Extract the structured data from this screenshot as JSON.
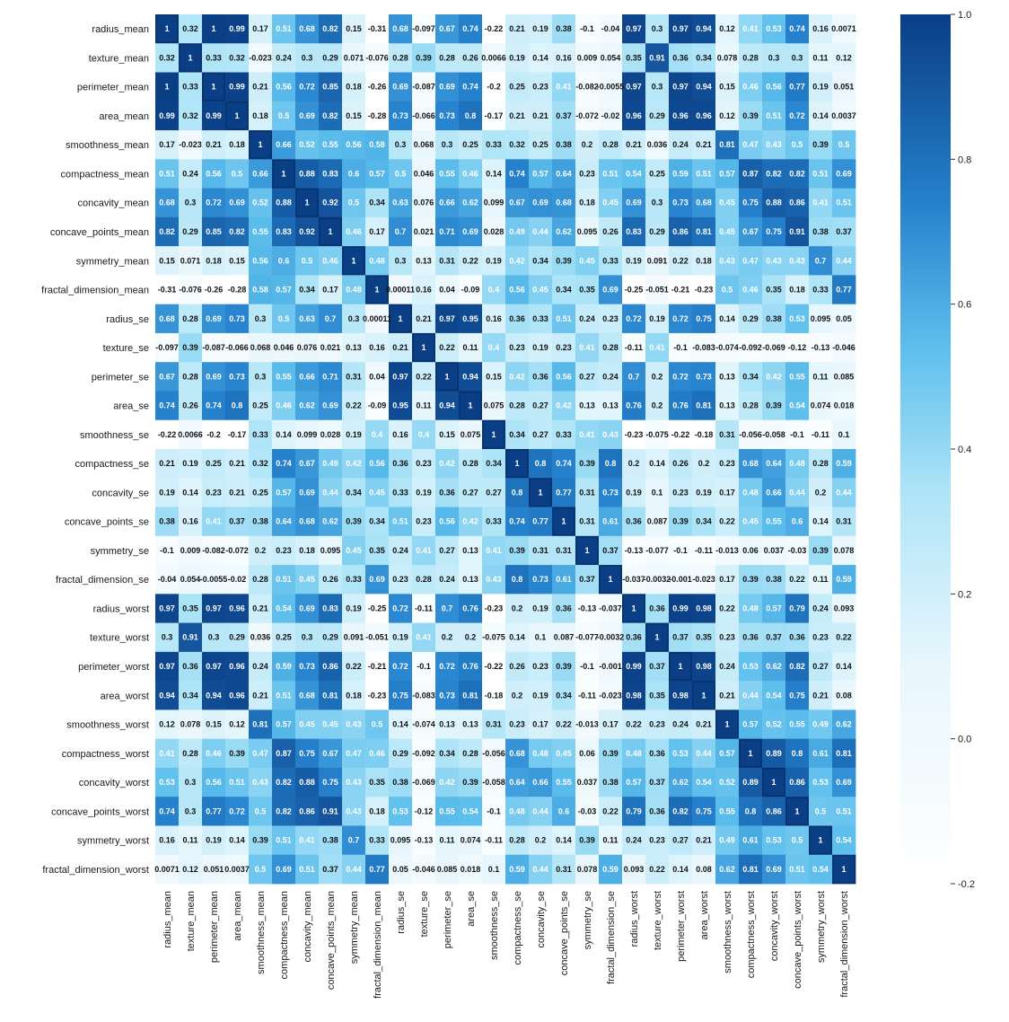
{
  "chart_data": {
    "type": "heatmap",
    "title": "",
    "variables": [
      "radius_mean",
      "texture_mean",
      "perimeter_mean",
      "area_mean",
      "smoothness_mean",
      "compactness_mean",
      "concavity_mean",
      "concave_points_mean",
      "symmetry_mean",
      "fractal_dimension_mean",
      "radius_se",
      "texture_se",
      "perimeter_se",
      "area_se",
      "smoothness_se",
      "compactness_se",
      "concavity_se",
      "concave_points_se",
      "symmetry_se",
      "fractal_dimension_se",
      "radius_worst",
      "texture_worst",
      "perimeter_worst",
      "area_worst",
      "smoothness_worst",
      "compactness_worst",
      "concavity_worst",
      "concave_points_worst",
      "symmetry_worst",
      "fractal_dimension_worst"
    ],
    "values": [
      [
        1,
        0.32,
        1,
        0.99,
        0.17,
        0.51,
        0.68,
        0.82,
        0.15,
        -0.31,
        0.68,
        -0.097,
        0.67,
        0.74,
        -0.22,
        0.21,
        0.19,
        0.38,
        -0.1,
        -0.04,
        0.97,
        0.3,
        0.97,
        0.94,
        0.12,
        0.41,
        0.53,
        0.74,
        0.16,
        0.0071
      ],
      [
        0.32,
        1,
        0.33,
        0.32,
        -0.023,
        0.24,
        0.3,
        0.29,
        0.071,
        -0.076,
        0.28,
        0.39,
        0.28,
        0.26,
        0.0066,
        0.19,
        0.14,
        0.16,
        0.009,
        0.054,
        0.35,
        0.91,
        0.36,
        0.34,
        0.078,
        0.28,
        0.3,
        0.3,
        0.11,
        0.12
      ],
      [
        1,
        0.33,
        1,
        0.99,
        0.21,
        0.56,
        0.72,
        0.85,
        0.18,
        -0.26,
        0.69,
        -0.087,
        0.69,
        0.74,
        -0.2,
        0.25,
        0.23,
        0.41,
        -0.082,
        -0.0055,
        0.97,
        0.3,
        0.97,
        0.94,
        0.15,
        0.46,
        0.56,
        0.77,
        0.19,
        0.051
      ],
      [
        0.99,
        0.32,
        0.99,
        1,
        0.18,
        0.5,
        0.69,
        0.82,
        0.15,
        -0.28,
        0.73,
        -0.066,
        0.73,
        0.8,
        -0.17,
        0.21,
        0.21,
        0.37,
        -0.072,
        -0.02,
        0.96,
        0.29,
        0.96,
        0.96,
        0.12,
        0.39,
        0.51,
        0.72,
        0.14,
        0.0037
      ],
      [
        0.17,
        -0.023,
        0.21,
        0.18,
        1,
        0.66,
        0.52,
        0.55,
        0.56,
        0.58,
        0.3,
        0.068,
        0.3,
        0.25,
        0.33,
        0.32,
        0.25,
        0.38,
        0.2,
        0.28,
        0.21,
        0.036,
        0.24,
        0.21,
        0.81,
        0.47,
        0.43,
        0.5,
        0.39,
        0.5
      ],
      [
        0.51,
        0.24,
        0.56,
        0.5,
        0.66,
        1,
        0.88,
        0.83,
        0.6,
        0.57,
        0.5,
        0.046,
        0.55,
        0.46,
        0.14,
        0.74,
        0.57,
        0.64,
        0.23,
        0.51,
        0.54,
        0.25,
        0.59,
        0.51,
        0.57,
        0.87,
        0.82,
        0.82,
        0.51,
        0.69
      ],
      [
        0.68,
        0.3,
        0.72,
        0.69,
        0.52,
        0.88,
        1,
        0.92,
        0.5,
        0.34,
        0.63,
        0.076,
        0.66,
        0.62,
        0.099,
        0.67,
        0.69,
        0.68,
        0.18,
        0.45,
        0.69,
        0.3,
        0.73,
        0.68,
        0.45,
        0.75,
        0.88,
        0.86,
        0.41,
        0.51
      ],
      [
        0.82,
        0.29,
        0.85,
        0.82,
        0.55,
        0.83,
        0.92,
        1,
        0.46,
        0.17,
        0.7,
        0.021,
        0.71,
        0.69,
        0.028,
        0.49,
        0.44,
        0.62,
        0.095,
        0.26,
        0.83,
        0.29,
        0.86,
        0.81,
        0.45,
        0.67,
        0.75,
        0.91,
        0.38,
        0.37
      ],
      [
        0.15,
        0.071,
        0.18,
        0.15,
        0.56,
        0.6,
        0.5,
        0.46,
        1,
        0.48,
        0.3,
        0.13,
        0.31,
        0.22,
        0.19,
        0.42,
        0.34,
        0.39,
        0.45,
        0.33,
        0.19,
        0.091,
        0.22,
        0.18,
        0.43,
        0.47,
        0.43,
        0.43,
        0.7,
        0.44
      ],
      [
        -0.31,
        -0.076,
        -0.26,
        -0.28,
        0.58,
        0.57,
        0.34,
        0.17,
        0.48,
        1,
        0.00011,
        0.16,
        0.04,
        -0.09,
        0.4,
        0.56,
        0.45,
        0.34,
        0.35,
        0.69,
        -0.25,
        -0.051,
        -0.21,
        -0.23,
        0.5,
        0.46,
        0.35,
        0.18,
        0.33,
        0.77
      ],
      [
        0.68,
        0.28,
        0.69,
        0.73,
        0.3,
        0.5,
        0.63,
        0.7,
        0.3,
        0.00011,
        1,
        0.21,
        0.97,
        0.95,
        0.16,
        0.36,
        0.33,
        0.51,
        0.24,
        0.23,
        0.72,
        0.19,
        0.72,
        0.75,
        0.14,
        0.29,
        0.38,
        0.53,
        0.095,
        0.05
      ],
      [
        -0.097,
        0.39,
        -0.087,
        -0.066,
        0.068,
        0.046,
        0.076,
        0.021,
        0.13,
        0.16,
        0.21,
        1,
        0.22,
        0.11,
        0.4,
        0.23,
        0.19,
        0.23,
        0.41,
        0.28,
        -0.11,
        0.41,
        -0.1,
        -0.083,
        -0.074,
        -0.092,
        -0.069,
        -0.12,
        -0.13,
        -0.046
      ],
      [
        0.67,
        0.28,
        0.69,
        0.73,
        0.3,
        0.55,
        0.66,
        0.71,
        0.31,
        0.04,
        0.97,
        0.22,
        1,
        0.94,
        0.15,
        0.42,
        0.36,
        0.56,
        0.27,
        0.24,
        0.7,
        0.2,
        0.72,
        0.73,
        0.13,
        0.34,
        0.42,
        0.55,
        0.11,
        0.085
      ],
      [
        0.74,
        0.26,
        0.74,
        0.8,
        0.25,
        0.46,
        0.62,
        0.69,
        0.22,
        -0.09,
        0.95,
        0.11,
        0.94,
        1,
        0.075,
        0.28,
        0.27,
        0.42,
        0.13,
        0.13,
        0.76,
        0.2,
        0.76,
        0.81,
        0.13,
        0.28,
        0.39,
        0.54,
        0.074,
        0.018
      ],
      [
        -0.22,
        0.0066,
        -0.2,
        -0.17,
        0.33,
        0.14,
        0.099,
        0.028,
        0.19,
        0.4,
        0.16,
        0.4,
        0.15,
        0.075,
        1,
        0.34,
        0.27,
        0.33,
        0.41,
        0.43,
        -0.23,
        -0.075,
        -0.22,
        -0.18,
        0.31,
        -0.056,
        -0.058,
        -0.1,
        -0.11,
        0.1
      ],
      [
        0.21,
        0.19,
        0.25,
        0.21,
        0.32,
        0.74,
        0.67,
        0.49,
        0.42,
        0.56,
        0.36,
        0.23,
        0.42,
        0.28,
        0.34,
        1,
        0.8,
        0.74,
        0.39,
        0.8,
        0.2,
        0.14,
        0.26,
        0.2,
        0.23,
        0.68,
        0.64,
        0.48,
        0.28,
        0.59
      ],
      [
        0.19,
        0.14,
        0.23,
        0.21,
        0.25,
        0.57,
        0.69,
        0.44,
        0.34,
        0.45,
        0.33,
        0.19,
        0.36,
        0.27,
        0.27,
        0.8,
        1,
        0.77,
        0.31,
        0.73,
        0.19,
        0.1,
        0.23,
        0.19,
        0.17,
        0.48,
        0.66,
        0.44,
        0.2,
        0.44
      ],
      [
        0.38,
        0.16,
        0.41,
        0.37,
        0.38,
        0.64,
        0.68,
        0.62,
        0.39,
        0.34,
        0.51,
        0.23,
        0.56,
        0.42,
        0.33,
        0.74,
        0.77,
        1,
        0.31,
        0.61,
        0.36,
        0.087,
        0.39,
        0.34,
        0.22,
        0.45,
        0.55,
        0.6,
        0.14,
        0.31
      ],
      [
        -0.1,
        0.009,
        -0.082,
        -0.072,
        0.2,
        0.23,
        0.18,
        0.095,
        0.45,
        0.35,
        0.24,
        0.41,
        0.27,
        0.13,
        0.41,
        0.39,
        0.31,
        0.31,
        1,
        0.37,
        -0.13,
        -0.077,
        -0.1,
        -0.11,
        -0.013,
        0.06,
        0.037,
        -0.03,
        0.39,
        0.078
      ],
      [
        -0.04,
        0.054,
        -0.0055,
        -0.02,
        0.28,
        0.51,
        0.45,
        0.26,
        0.33,
        0.69,
        0.23,
        0.28,
        0.24,
        0.13,
        0.43,
        0.8,
        0.73,
        0.61,
        0.37,
        1,
        -0.037,
        -0.0032,
        -0.001,
        -0.023,
        0.17,
        0.39,
        0.38,
        0.22,
        0.11,
        0.59
      ],
      [
        0.97,
        0.35,
        0.97,
        0.96,
        0.21,
        0.54,
        0.69,
        0.83,
        0.19,
        -0.25,
        0.72,
        -0.11,
        0.7,
        0.76,
        -0.23,
        0.2,
        0.19,
        0.36,
        -0.13,
        -0.037,
        1,
        0.36,
        0.99,
        0.98,
        0.22,
        0.48,
        0.57,
        0.79,
        0.24,
        0.093
      ],
      [
        0.3,
        0.91,
        0.3,
        0.29,
        0.036,
        0.25,
        0.3,
        0.29,
        0.091,
        -0.051,
        0.19,
        0.41,
        0.2,
        0.2,
        -0.075,
        0.14,
        0.1,
        0.087,
        -0.077,
        -0.0032,
        0.36,
        1,
        0.37,
        0.35,
        0.23,
        0.36,
        0.37,
        0.36,
        0.23,
        0.22
      ],
      [
        0.97,
        0.36,
        0.97,
        0.96,
        0.24,
        0.59,
        0.73,
        0.86,
        0.22,
        -0.21,
        0.72,
        -0.1,
        0.72,
        0.76,
        -0.22,
        0.26,
        0.23,
        0.39,
        -0.1,
        -0.001,
        0.99,
        0.37,
        1,
        0.98,
        0.24,
        0.53,
        0.62,
        0.82,
        0.27,
        0.14
      ],
      [
        0.94,
        0.34,
        0.94,
        0.96,
        0.21,
        0.51,
        0.68,
        0.81,
        0.18,
        -0.23,
        0.75,
        -0.083,
        0.73,
        0.81,
        -0.18,
        0.2,
        0.19,
        0.34,
        -0.11,
        -0.023,
        0.98,
        0.35,
        0.98,
        1,
        0.21,
        0.44,
        0.54,
        0.75,
        0.21,
        0.08
      ],
      [
        0.12,
        0.078,
        0.15,
        0.12,
        0.81,
        0.57,
        0.45,
        0.45,
        0.43,
        0.5,
        0.14,
        -0.074,
        0.13,
        0.13,
        0.31,
        0.23,
        0.17,
        0.22,
        -0.013,
        0.17,
        0.22,
        0.23,
        0.24,
        0.21,
        1,
        0.57,
        0.52,
        0.55,
        0.49,
        0.62
      ],
      [
        0.41,
        0.28,
        0.46,
        0.39,
        0.47,
        0.87,
        0.75,
        0.67,
        0.47,
        0.46,
        0.29,
        -0.092,
        0.34,
        0.28,
        -0.056,
        0.68,
        0.48,
        0.45,
        0.06,
        0.39,
        0.48,
        0.36,
        0.53,
        0.44,
        0.57,
        1,
        0.89,
        0.8,
        0.61,
        0.81
      ],
      [
        0.53,
        0.3,
        0.56,
        0.51,
        0.43,
        0.82,
        0.88,
        0.75,
        0.43,
        0.35,
        0.38,
        -0.069,
        0.42,
        0.39,
        -0.058,
        0.64,
        0.66,
        0.55,
        0.037,
        0.38,
        0.57,
        0.37,
        0.62,
        0.54,
        0.52,
        0.89,
        1,
        0.86,
        0.53,
        0.69
      ],
      [
        0.74,
        0.3,
        0.77,
        0.72,
        0.5,
        0.82,
        0.86,
        0.91,
        0.43,
        0.18,
        0.53,
        -0.12,
        0.55,
        0.54,
        -0.1,
        0.48,
        0.44,
        0.6,
        -0.03,
        0.22,
        0.79,
        0.36,
        0.82,
        0.75,
        0.55,
        0.8,
        0.86,
        1,
        0.5,
        0.51
      ],
      [
        0.16,
        0.11,
        0.19,
        0.14,
        0.39,
        0.51,
        0.41,
        0.38,
        0.7,
        0.33,
        0.095,
        -0.13,
        0.11,
        0.074,
        -0.11,
        0.28,
        0.2,
        0.14,
        0.39,
        0.11,
        0.24,
        0.23,
        0.27,
        0.21,
        0.49,
        0.61,
        0.53,
        0.5,
        1,
        0.54
      ],
      [
        0.0071,
        0.12,
        0.051,
        0.0037,
        0.5,
        0.69,
        0.51,
        0.37,
        0.44,
        0.77,
        0.05,
        -0.046,
        0.085,
        0.018,
        0.1,
        0.59,
        0.44,
        0.31,
        0.078,
        0.59,
        0.093,
        0.22,
        0.14,
        0.08,
        0.62,
        0.81,
        0.69,
        0.51,
        0.54,
        1
      ]
    ],
    "colorbar": {
      "vmin": -0.2,
      "vmax": 1.0,
      "ticks": [
        1.0,
        0.8,
        0.6,
        0.4,
        0.2,
        0.0,
        -0.2
      ],
      "tick_labels": [
        "1.0",
        "0.8",
        "0.6",
        "0.4",
        "0.2",
        "0.0",
        "-0.2"
      ]
    },
    "colormap": {
      "low": "#ffffff",
      "mid_light": "#aee4f7",
      "mid": "#4fb5e6",
      "high": "#0a3e85"
    },
    "annotations": true
  }
}
